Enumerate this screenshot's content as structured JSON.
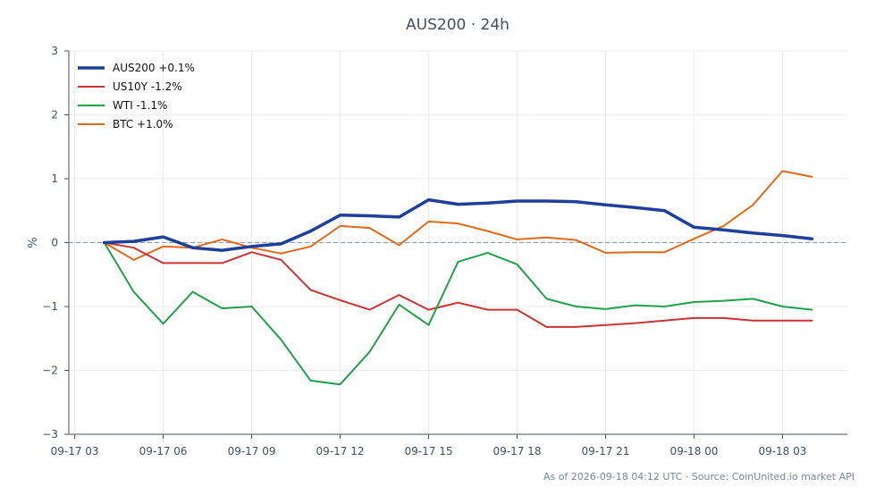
{
  "chart_data": {
    "type": "line",
    "title": "AUS200 · 24h",
    "xlabel": "",
    "ylabel": "%",
    "x_ticks": [
      "09-17 03",
      "09-17 06",
      "09-17 09",
      "09-17 12",
      "09-17 15",
      "09-17 18",
      "09-17 21",
      "09-18 00",
      "09-18 03"
    ],
    "x": [
      4,
      5,
      6,
      7,
      8,
      9,
      10,
      11,
      12,
      13,
      14,
      15,
      16,
      17,
      18,
      19,
      20,
      21,
      22,
      23,
      24,
      25,
      26,
      27,
      28
    ],
    "y_ticks": [
      -3,
      -2,
      -1,
      0,
      1,
      2,
      3
    ],
    "xlim": [
      2.8,
      29.2
    ],
    "ylim": [
      -3,
      3
    ],
    "grid": true,
    "zero_line": true,
    "legend_position": "top-left",
    "series": [
      {
        "name": "AUS200 +0.1%",
        "color": "#1f3f99",
        "width": 3.5,
        "values": [
          0.0,
          0.02,
          0.09,
          -0.08,
          -0.12,
          -0.06,
          -0.02,
          0.18,
          0.43,
          0.42,
          0.4,
          0.67,
          0.6,
          0.62,
          0.65,
          0.65,
          0.64,
          0.59,
          0.55,
          0.5,
          0.24,
          0.2,
          0.15,
          0.11,
          0.06
        ]
      },
      {
        "name": "US10Y -1.2%",
        "color": "#cc3333",
        "width": 2,
        "values": [
          0.0,
          -0.08,
          -0.32,
          -0.32,
          -0.32,
          -0.15,
          -0.27,
          -0.74,
          -0.9,
          -1.05,
          -0.82,
          -1.05,
          -0.94,
          -1.05,
          -1.05,
          -1.32,
          -1.32,
          -1.29,
          -1.26,
          -1.22,
          -1.18,
          -1.18,
          -1.22,
          -1.22,
          -1.22
        ]
      },
      {
        "name": "WTI -1.1%",
        "color": "#22a04b",
        "width": 2,
        "values": [
          0.0,
          -0.77,
          -1.27,
          -0.77,
          -1.03,
          -1.0,
          -1.52,
          -2.16,
          -2.22,
          -1.71,
          -0.97,
          -1.29,
          -0.3,
          -0.16,
          -0.34,
          -0.88,
          -1.0,
          -1.04,
          -0.98,
          -1.0,
          -0.93,
          -0.91,
          -0.88,
          -1.0,
          -1.05
        ]
      },
      {
        "name": "BTC +1.0%",
        "color": "#e06a1b",
        "width": 2,
        "values": [
          0.0,
          -0.27,
          -0.06,
          -0.08,
          0.05,
          -0.08,
          -0.17,
          -0.06,
          0.26,
          0.23,
          -0.04,
          0.33,
          0.3,
          0.18,
          0.05,
          0.08,
          0.04,
          -0.16,
          -0.15,
          -0.15,
          0.06,
          0.26,
          0.59,
          1.12,
          1.03
        ]
      }
    ]
  },
  "footer": "As of 2026-09-18 04:12 UTC · Source: CoinUnited.io market API",
  "colors": {
    "axis": "#44505c",
    "grid": "#e8ebef",
    "zero_line": "#8a9aae"
  }
}
